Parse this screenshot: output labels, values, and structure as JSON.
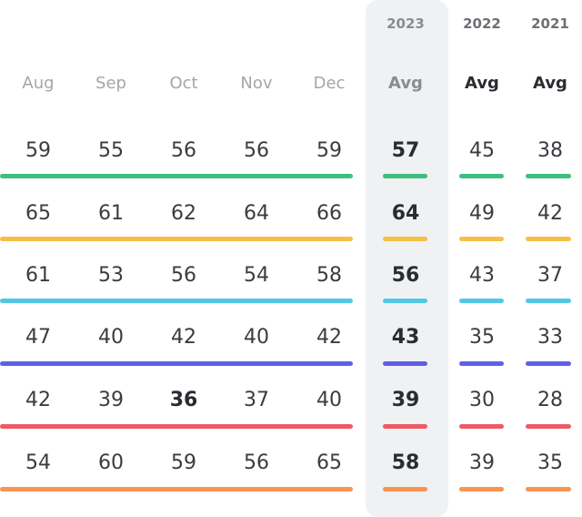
{
  "chart_data": {
    "type": "table",
    "months": [
      "Aug",
      "Sep",
      "Oct",
      "Nov",
      "Dec"
    ],
    "years": [
      "2023",
      "2022",
      "2021"
    ],
    "avg_label": "Avg",
    "rows": [
      {
        "color": "#3dbf7f",
        "months": [
          59,
          55,
          56,
          56,
          59
        ],
        "avg": [
          57,
          45,
          38
        ],
        "highlight": null
      },
      {
        "color": "#f6bf45",
        "months": [
          65,
          61,
          62,
          64,
          66
        ],
        "avg": [
          64,
          49,
          42
        ],
        "highlight": null
      },
      {
        "color": "#52c8e6",
        "months": [
          61,
          53,
          56,
          54,
          58
        ],
        "avg": [
          56,
          43,
          37
        ],
        "highlight": null
      },
      {
        "color": "#5f5fe9",
        "months": [
          47,
          40,
          42,
          40,
          42
        ],
        "avg": [
          43,
          35,
          33
        ],
        "highlight": null
      },
      {
        "color": "#ee5a64",
        "months": [
          42,
          39,
          36,
          37,
          40
        ],
        "avg": [
          39,
          30,
          28
        ],
        "highlight": 2
      },
      {
        "color": "#f8944d",
        "months": [
          54,
          60,
          59,
          56,
          65
        ],
        "avg": [
          58,
          39,
          35
        ],
        "highlight": null
      }
    ]
  }
}
